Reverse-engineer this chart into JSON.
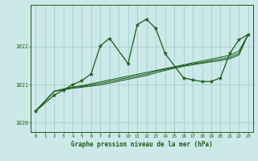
{
  "x": [
    0,
    1,
    2,
    3,
    4,
    5,
    6,
    7,
    8,
    9,
    10,
    11,
    12,
    13,
    14,
    15,
    16,
    17,
    18,
    19,
    20,
    21,
    22,
    23
  ],
  "line1_x": [
    0,
    2,
    3,
    4,
    5,
    6,
    7,
    8,
    10,
    11,
    12,
    13,
    14,
    16,
    17,
    18,
    19,
    20,
    21,
    22,
    23
  ],
  "line1_y": [
    1020.3,
    1020.72,
    1020.85,
    1021.0,
    1021.1,
    1021.28,
    1022.02,
    1022.22,
    1021.55,
    1022.58,
    1022.72,
    1022.48,
    1021.82,
    1021.18,
    1021.12,
    1021.08,
    1021.08,
    1021.18,
    1021.82,
    1022.18,
    1022.32
  ],
  "line2_x": [
    0,
    2,
    3,
    4,
    5,
    6,
    7,
    8,
    9,
    10,
    11,
    12,
    13,
    14,
    15,
    16,
    17,
    18,
    19,
    20,
    21,
    22,
    23
  ],
  "line2_y": [
    1020.3,
    1020.82,
    1020.88,
    1020.93,
    1020.97,
    1021.02,
    1021.07,
    1021.12,
    1021.17,
    1021.22,
    1021.27,
    1021.32,
    1021.37,
    1021.42,
    1021.47,
    1021.52,
    1021.57,
    1021.62,
    1021.67,
    1021.72,
    1021.77,
    1021.88,
    1022.32
  ],
  "line3_x": [
    0,
    2,
    3,
    4,
    5,
    6,
    7,
    8,
    9,
    10,
    11,
    12,
    13,
    14,
    15,
    16,
    17,
    18,
    19,
    20,
    21,
    22,
    23
  ],
  "line3_y": [
    1020.3,
    1020.82,
    1020.88,
    1020.93,
    1020.95,
    1020.99,
    1021.03,
    1021.08,
    1021.13,
    1021.18,
    1021.23,
    1021.28,
    1021.35,
    1021.4,
    1021.45,
    1021.5,
    1021.55,
    1021.58,
    1021.63,
    1021.67,
    1021.72,
    1021.82,
    1022.32
  ],
  "line4_x": [
    0,
    2,
    3,
    4,
    5,
    6,
    7,
    8,
    9,
    10,
    11,
    12,
    13,
    14,
    15,
    16,
    17,
    18,
    19,
    20,
    21,
    22,
    23
  ],
  "line4_y": [
    1020.3,
    1020.82,
    1020.86,
    1020.9,
    1020.93,
    1020.96,
    1020.99,
    1021.04,
    1021.09,
    1021.14,
    1021.19,
    1021.24,
    1021.31,
    1021.37,
    1021.43,
    1021.48,
    1021.52,
    1021.56,
    1021.6,
    1021.63,
    1021.68,
    1021.78,
    1022.32
  ],
  "line_color": "#1a5c1a",
  "bg_color": "#cce8e8",
  "grid_color": "#99cccc",
  "xlabel": "Graphe pression niveau de la mer (hPa)",
  "yticks": [
    1020,
    1021,
    1022
  ],
  "xticks": [
    0,
    1,
    2,
    3,
    4,
    5,
    6,
    7,
    8,
    9,
    10,
    11,
    12,
    13,
    14,
    15,
    16,
    17,
    18,
    19,
    20,
    21,
    22,
    23
  ],
  "ylim": [
    1019.75,
    1023.1
  ],
  "xlim": [
    -0.5,
    23.5
  ]
}
